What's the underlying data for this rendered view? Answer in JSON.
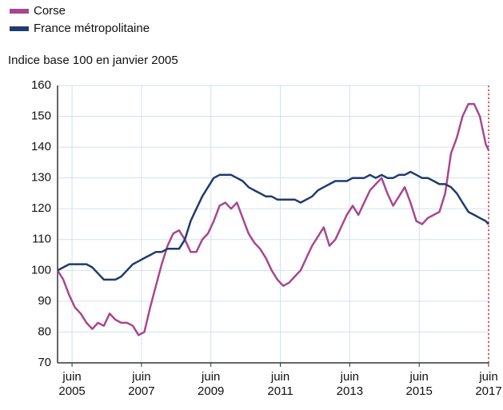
{
  "chart_data": {
    "type": "line",
    "subtitle": "Indice base 100 en janvier 2005",
    "xlim": [
      "2005-01",
      "2017-06"
    ],
    "xticks": [
      {
        "value": "2005-06",
        "label": [
          "juin",
          "2005"
        ]
      },
      {
        "value": "2007-06",
        "label": [
          "juin",
          "2007"
        ]
      },
      {
        "value": "2009-06",
        "label": [
          "juin",
          "2009"
        ]
      },
      {
        "value": "2011-06",
        "label": [
          "juin",
          "2011"
        ]
      },
      {
        "value": "2013-06",
        "label": [
          "juin",
          "2013"
        ]
      },
      {
        "value": "2015-06",
        "label": [
          "juin",
          "2015"
        ]
      },
      {
        "value": "2017-06",
        "label": [
          "juin",
          "2017"
        ]
      }
    ],
    "ylim": [
      70,
      160
    ],
    "yticks": [
      70,
      80,
      90,
      100,
      110,
      120,
      130,
      140,
      150,
      160
    ],
    "grid": true,
    "x": [
      "2005-01",
      "2005-03",
      "2005-05",
      "2005-07",
      "2005-09",
      "2005-11",
      "2006-01",
      "2006-03",
      "2006-05",
      "2006-07",
      "2006-09",
      "2006-11",
      "2007-01",
      "2007-03",
      "2007-05",
      "2007-07",
      "2007-09",
      "2007-11",
      "2008-01",
      "2008-03",
      "2008-05",
      "2008-07",
      "2008-09",
      "2008-11",
      "2009-01",
      "2009-03",
      "2009-05",
      "2009-07",
      "2009-09",
      "2009-11",
      "2010-01",
      "2010-03",
      "2010-05",
      "2010-07",
      "2010-09",
      "2010-11",
      "2011-01",
      "2011-03",
      "2011-05",
      "2011-07",
      "2011-09",
      "2011-11",
      "2012-01",
      "2012-03",
      "2012-05",
      "2012-07",
      "2012-09",
      "2012-11",
      "2013-01",
      "2013-03",
      "2013-05",
      "2013-07",
      "2013-09",
      "2013-11",
      "2014-01",
      "2014-03",
      "2014-05",
      "2014-07",
      "2014-09",
      "2014-11",
      "2015-01",
      "2015-03",
      "2015-05",
      "2015-07",
      "2015-09",
      "2015-11",
      "2016-01",
      "2016-03",
      "2016-05",
      "2016-07",
      "2016-09",
      "2016-11",
      "2017-01",
      "2017-03",
      "2017-05",
      "2017-06"
    ],
    "series": [
      {
        "name": "Corse",
        "color": "#a8478f",
        "values": [
          100,
          97,
          92,
          88,
          86,
          83,
          81,
          83,
          82,
          86,
          84,
          83,
          83,
          82,
          79,
          80,
          88,
          95,
          102,
          108,
          112,
          113,
          110,
          106,
          106,
          110,
          112,
          116,
          121,
          122,
          120,
          122,
          117,
          112,
          109,
          107,
          104,
          100,
          97,
          95,
          96,
          98,
          100,
          104,
          108,
          111,
          114,
          108,
          110,
          114,
          118,
          121,
          118,
          122,
          126,
          128,
          130,
          125,
          121,
          124,
          127,
          122,
          116,
          115,
          117,
          118,
          119,
          125,
          138,
          143,
          150,
          154,
          154,
          150,
          141,
          139
        ]
      },
      {
        "name": "France métropolitaine",
        "color": "#1f3c6e",
        "values": [
          100,
          101,
          102,
          102,
          102,
          102,
          101,
          99,
          97,
          97,
          97,
          98,
          100,
          102,
          103,
          104,
          105,
          106,
          106,
          107,
          107,
          107,
          110,
          116,
          120,
          124,
          127,
          130,
          131,
          131,
          131,
          130,
          129,
          127,
          126,
          125,
          124,
          124,
          123,
          123,
          123,
          123,
          122,
          123,
          124,
          126,
          127,
          128,
          129,
          129,
          129,
          130,
          130,
          130,
          131,
          130,
          131,
          130,
          130,
          131,
          131,
          132,
          131,
          130,
          130,
          129,
          128,
          128,
          127,
          125,
          122,
          119,
          118,
          117,
          116,
          115
        ]
      }
    ]
  }
}
